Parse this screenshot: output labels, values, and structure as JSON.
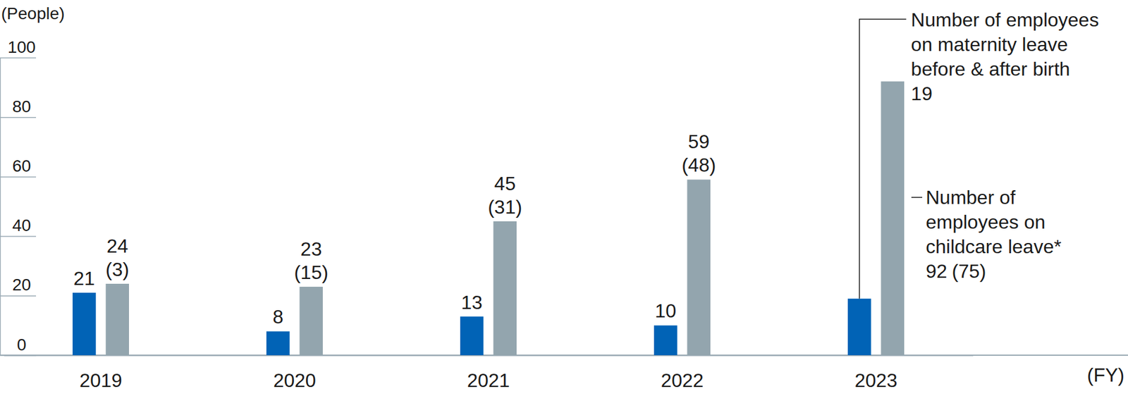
{
  "chart_data": {
    "type": "bar",
    "y_label": "(People)",
    "x_label": "(FY)",
    "categories": [
      "2019",
      "2020",
      "2021",
      "2022",
      "2023"
    ],
    "series": [
      {
        "name": "Number of employees on maternity leave before & after birth",
        "color": "#0163b6",
        "values": [
          21,
          8,
          13,
          10,
          19
        ]
      },
      {
        "name": "Number of employees on childcare leave*",
        "color": "#93a5ae",
        "values": [
          24,
          23,
          45,
          59,
          92
        ],
        "sub_values": [
          3,
          15,
          31,
          48,
          75
        ],
        "sub_value_labels": [
          "(3)",
          "(15)",
          "(31)",
          "(48)",
          "(75)"
        ]
      }
    ],
    "ylim": [
      0,
      100
    ],
    "yticks": [
      0,
      20,
      40,
      60,
      80,
      100
    ],
    "grid": false,
    "data_labels": true
  }
}
